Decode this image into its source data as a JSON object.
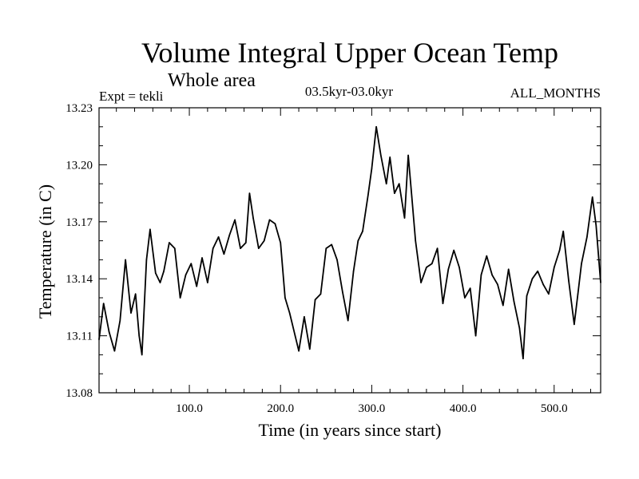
{
  "chart_data": {
    "type": "line",
    "title": "Volume Integral Upper Ocean Temp",
    "subtitle": "Whole area",
    "expt_label": "Expt = tekli",
    "period_label": "03.5kyr-03.0kyr",
    "months_label": "ALL_MONTHS",
    "xlabel": "Time (in years since start)",
    "ylabel": "Temperature (in C)",
    "xlim": [
      1,
      551
    ],
    "ylim": [
      13.08,
      13.23
    ],
    "x_ticks": [
      "100.0",
      "200.0",
      "300.0",
      "400.0",
      "500.0"
    ],
    "y_ticks": [
      "13.08",
      "13.11",
      "13.14",
      "13.17",
      "13.20",
      "13.23"
    ],
    "grid": false,
    "line_color": "#000000",
    "series": [
      {
        "name": "Temperature",
        "x": [
          1,
          6,
          12,
          18,
          24,
          30,
          36,
          41,
          45,
          48,
          53,
          57,
          63,
          68,
          72,
          78,
          84,
          90,
          96,
          102,
          108,
          114,
          120,
          126,
          132,
          138,
          144,
          150,
          156,
          162,
          166,
          170,
          176,
          182,
          188,
          194,
          200,
          205,
          210,
          216,
          220,
          226,
          232,
          238,
          244,
          250,
          256,
          262,
          268,
          274,
          280,
          285,
          290,
          296,
          300,
          305,
          310,
          316,
          320,
          325,
          330,
          336,
          340,
          344,
          348,
          354,
          360,
          366,
          372,
          378,
          384,
          390,
          396,
          402,
          408,
          414,
          420,
          426,
          432,
          438,
          444,
          450,
          456,
          462,
          466,
          470,
          476,
          482,
          488,
          494,
          500,
          506,
          510,
          516,
          522,
          526,
          530,
          536,
          542,
          546,
          551
        ],
        "y": [
          13.108,
          13.127,
          13.112,
          13.102,
          13.118,
          13.15,
          13.122,
          13.132,
          13.11,
          13.1,
          13.15,
          13.166,
          13.143,
          13.138,
          13.144,
          13.159,
          13.156,
          13.13,
          13.142,
          13.148,
          13.136,
          13.151,
          13.138,
          13.156,
          13.162,
          13.153,
          13.163,
          13.171,
          13.156,
          13.159,
          13.185,
          13.172,
          13.156,
          13.16,
          13.171,
          13.169,
          13.159,
          13.13,
          13.122,
          13.11,
          13.102,
          13.12,
          13.103,
          13.129,
          13.132,
          13.156,
          13.158,
          13.15,
          13.133,
          13.118,
          13.144,
          13.16,
          13.165,
          13.184,
          13.198,
          13.22,
          13.205,
          13.19,
          13.204,
          13.185,
          13.19,
          13.172,
          13.205,
          13.183,
          13.16,
          13.138,
          13.146,
          13.148,
          13.156,
          13.127,
          13.145,
          13.155,
          13.146,
          13.13,
          13.135,
          13.11,
          13.142,
          13.152,
          13.142,
          13.137,
          13.126,
          13.145,
          13.128,
          13.114,
          13.098,
          13.131,
          13.14,
          13.144,
          13.137,
          13.132,
          13.146,
          13.155,
          13.165,
          13.139,
          13.116,
          13.132,
          13.148,
          13.162,
          13.183,
          13.168,
          13.138
        ]
      }
    ]
  }
}
